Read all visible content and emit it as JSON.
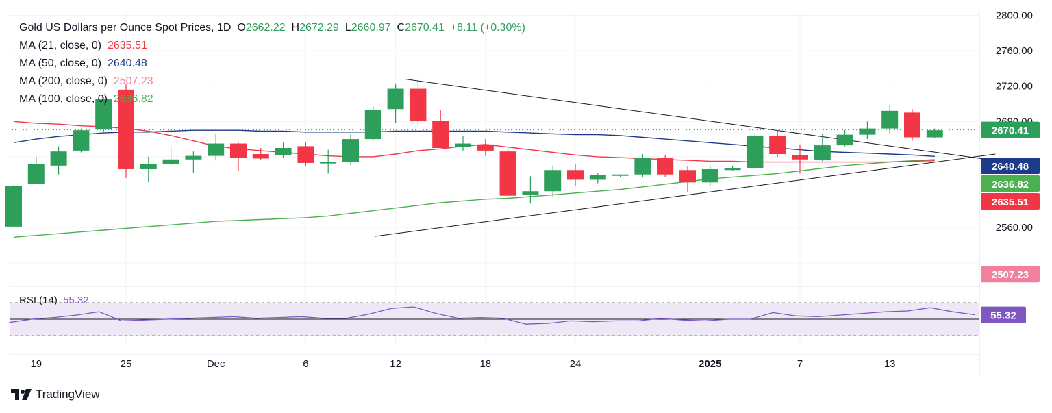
{
  "header": {
    "title": "Gold US Dollars per Ounce Spot Prices, 1D",
    "open_label": "O",
    "open": "2662.22",
    "high_label": "H",
    "high": "2672.29",
    "low_label": "L",
    "low": "2660.97",
    "close_label": "C",
    "close": "2670.41",
    "change": "+8.11 (+0.30%)"
  },
  "legend": [
    {
      "label": "MA (21, close, 0)",
      "value": "2635.51",
      "color": "#f23645"
    },
    {
      "label": "MA (50, close, 0)",
      "value": "2640.48",
      "color": "#1c3b8a"
    },
    {
      "label": "MA (200, close, 0)",
      "value": "2507.23",
      "color": "#f0809d"
    },
    {
      "label": "MA (100, close, 0)",
      "value": "2636.82",
      "color": "#4caf50"
    }
  ],
  "rsi": {
    "label": "RSI (14)",
    "value": "55.32",
    "color": "#7e57c2"
  },
  "brand": {
    "name": "TradingView"
  },
  "chart_data": {
    "type": "candlestick",
    "title": "Gold US Dollars per Ounce Spot Prices, 1D",
    "ylim": [
      2495,
      2805
    ],
    "y_ticks": [
      "2800.00",
      "2760.00",
      "2720.00",
      "2680.00",
      "2560.00"
    ],
    "x_ticks": [
      {
        "label": "19",
        "i": 1
      },
      {
        "label": "25",
        "i": 5
      },
      {
        "label": "Dec",
        "i": 9
      },
      {
        "label": "6",
        "i": 13
      },
      {
        "label": "12",
        "i": 17
      },
      {
        "label": "18",
        "i": 21
      },
      {
        "label": "24",
        "i": 25
      },
      {
        "label": "2025",
        "i": 31
      },
      {
        "label": "7",
        "i": 35
      },
      {
        "label": "13",
        "i": 39
      }
    ],
    "candles": [
      {
        "o": 2561,
        "h": 2608,
        "l": 2561,
        "c": 2607
      },
      {
        "o": 2609,
        "h": 2640,
        "l": 2609,
        "c": 2632
      },
      {
        "o": 2630,
        "h": 2652,
        "l": 2620,
        "c": 2646
      },
      {
        "o": 2647,
        "h": 2672,
        "l": 2645,
        "c": 2670
      },
      {
        "o": 2671,
        "h": 2708,
        "l": 2668,
        "c": 2705
      },
      {
        "o": 2716,
        "h": 2722,
        "l": 2616,
        "c": 2626
      },
      {
        "o": 2626,
        "h": 2640,
        "l": 2611,
        "c": 2632
      },
      {
        "o": 2632,
        "h": 2652,
        "l": 2629,
        "c": 2637
      },
      {
        "o": 2637,
        "h": 2646,
        "l": 2622,
        "c": 2641
      },
      {
        "o": 2641,
        "h": 2666,
        "l": 2636,
        "c": 2655
      },
      {
        "o": 2655,
        "h": 2656,
        "l": 2624,
        "c": 2639
      },
      {
        "o": 2643,
        "h": 2650,
        "l": 2636,
        "c": 2638
      },
      {
        "o": 2642,
        "h": 2656,
        "l": 2639,
        "c": 2650
      },
      {
        "o": 2652,
        "h": 2656,
        "l": 2629,
        "c": 2633
      },
      {
        "o": 2634,
        "h": 2648,
        "l": 2621,
        "c": 2634
      },
      {
        "o": 2634,
        "h": 2665,
        "l": 2631,
        "c": 2660
      },
      {
        "o": 2660,
        "h": 2697,
        "l": 2658,
        "c": 2693
      },
      {
        "o": 2694,
        "h": 2723,
        "l": 2678,
        "c": 2717
      },
      {
        "o": 2717,
        "h": 2728,
        "l": 2676,
        "c": 2681
      },
      {
        "o": 2681,
        "h": 2693,
        "l": 2651,
        "c": 2650
      },
      {
        "o": 2651,
        "h": 2664,
        "l": 2647,
        "c": 2655
      },
      {
        "o": 2654,
        "h": 2660,
        "l": 2641,
        "c": 2647
      },
      {
        "o": 2646,
        "h": 2650,
        "l": 2594,
        "c": 2596
      },
      {
        "o": 2597,
        "h": 2618,
        "l": 2587,
        "c": 2601
      },
      {
        "o": 2601,
        "h": 2630,
        "l": 2595,
        "c": 2625
      },
      {
        "o": 2625,
        "h": 2632,
        "l": 2607,
        "c": 2614
      },
      {
        "o": 2614,
        "h": 2622,
        "l": 2610,
        "c": 2619
      },
      {
        "o": 2620,
        "h": 2620,
        "l": 2617,
        "c": 2620
      },
      {
        "o": 2620,
        "h": 2643,
        "l": 2617,
        "c": 2639
      },
      {
        "o": 2639,
        "h": 2642,
        "l": 2617,
        "c": 2620
      },
      {
        "o": 2625,
        "h": 2629,
        "l": 2600,
        "c": 2611
      },
      {
        "o": 2611,
        "h": 2630,
        "l": 2607,
        "c": 2626
      },
      {
        "o": 2625,
        "h": 2630,
        "l": 2624,
        "c": 2627
      },
      {
        "o": 2627,
        "h": 2667,
        "l": 2626,
        "c": 2664
      },
      {
        "o": 2664,
        "h": 2670,
        "l": 2640,
        "c": 2643
      },
      {
        "o": 2642,
        "h": 2654,
        "l": 2621,
        "c": 2637
      },
      {
        "o": 2636,
        "h": 2666,
        "l": 2635,
        "c": 2653
      },
      {
        "o": 2653,
        "h": 2670,
        "l": 2652,
        "c": 2665
      },
      {
        "o": 2665,
        "h": 2680,
        "l": 2660,
        "c": 2672
      },
      {
        "o": 2672,
        "h": 2698,
        "l": 2666,
        "c": 2692
      },
      {
        "o": 2690,
        "h": 2694,
        "l": 2658,
        "c": 2662
      },
      {
        "o": 2662,
        "h": 2672,
        "l": 2661,
        "c": 2670
      }
    ],
    "ma21": [
      2680,
      2678,
      2677,
      2675,
      2674,
      2672,
      2669,
      2664,
      2658,
      2652,
      2649,
      2647,
      2645,
      2643,
      2641,
      2640,
      2640,
      2643,
      2647,
      2649,
      2652,
      2654,
      2651,
      2648,
      2645,
      2642,
      2640,
      2639,
      2638,
      2637,
      2636,
      2635,
      2635,
      2634,
      2634,
      2634,
      2634,
      2634,
      2634,
      2634,
      2635,
      2635.5
    ],
    "ma50": [
      2656,
      2660,
      2663,
      2665,
      2667,
      2668,
      2668,
      2669,
      2670,
      2670,
      2670,
      2669,
      2669,
      2668,
      2668,
      2668,
      2668,
      2669,
      2669,
      2669,
      2669,
      2669,
      2668,
      2667,
      2666,
      2665,
      2665,
      2664,
      2662,
      2660,
      2658,
      2656,
      2654,
      2652,
      2650,
      2648,
      2646,
      2645,
      2644,
      2643,
      2642,
      2640.5
    ],
    "ma100": [
      2549,
      2551,
      2553,
      2555,
      2557,
      2559,
      2561,
      2563,
      2565,
      2567,
      2568,
      2569,
      2570,
      2571,
      2573,
      2576,
      2579,
      2582,
      2585,
      2588,
      2590,
      2592,
      2593,
      2595,
      2597,
      2599,
      2601,
      2603,
      2606,
      2609,
      2612,
      2615,
      2617,
      2619,
      2621,
      2624,
      2627,
      2630,
      2632,
      2634,
      2635.5,
      2636.8
    ],
    "trendlines": [
      {
        "from": [
          17.4,
          2728
        ],
        "to": [
          44.2,
          2634
        ]
      },
      {
        "from": [
          16.1,
          2550
        ],
        "to": [
          43.7,
          2643
        ]
      }
    ],
    "rsi": {
      "ylim": [
        20,
        85
      ],
      "bands": [
        30,
        50,
        70
      ],
      "values": [
        46,
        50,
        52,
        55,
        59,
        48,
        49,
        50,
        51,
        52,
        53,
        51,
        52,
        53,
        51,
        51,
        56,
        63,
        65,
        57,
        51,
        52,
        51,
        44,
        45,
        48,
        47,
        48,
        48,
        51,
        49,
        48,
        50,
        50,
        58,
        54,
        53,
        55,
        57,
        59,
        60,
        64,
        59,
        55.32
      ]
    },
    "price_labels": [
      {
        "value": 2670.41,
        "text": "2670.41",
        "color": "#2e9e5b"
      },
      {
        "value": 2640.48,
        "text": "2640.48",
        "color": "#1c3b8a"
      },
      {
        "value": 2636.82,
        "text": "2636.82",
        "color": "#4caf50"
      },
      {
        "value": 2635.51,
        "text": "2635.51",
        "color": "#f23645"
      },
      {
        "value": 2507.23,
        "text": "2507.23",
        "color": "#f0809d"
      }
    ],
    "colors": {
      "up": "#2e9e5b",
      "down": "#f23645",
      "grid": "#f0f3fa",
      "rsi_bg": "#ede7f6"
    }
  }
}
